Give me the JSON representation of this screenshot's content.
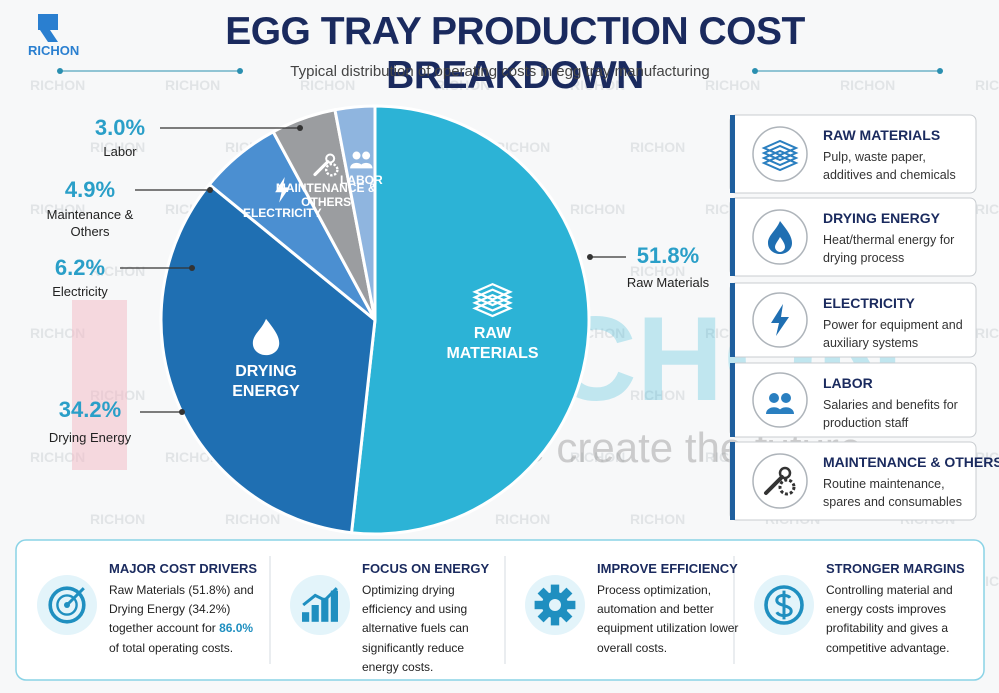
{
  "logo": {
    "text": "RICHON"
  },
  "header": {
    "title": "EGG TRAY PRODUCTION COST BREAKDOWN",
    "subtitle": "Typical distribution of operating costs in egg tray manufacturing"
  },
  "watermark": {
    "brand": "RICHON",
    "tagline": "Resource create the future"
  },
  "chart_data": {
    "type": "pie",
    "categories": [
      "RAW MATERIALS",
      "DRYING ENERGY",
      "ELECTRICITY",
      "MAINTENANCE & OTHERS",
      "LABOR"
    ],
    "outer_labels": [
      "Raw Materials",
      "Drying Energy",
      "Electricity",
      "Maintenance & Others",
      "Labor"
    ],
    "values": [
      51.8,
      34.2,
      6.2,
      4.9,
      3.0
    ],
    "value_labels": [
      "51.8%",
      "34.2%",
      "6.2%",
      "4.9%",
      "3.0%"
    ],
    "colors": [
      "#2cb3d6",
      "#1f6fb2",
      "#4b8fd1",
      "#9b9da0",
      "#8fb5df"
    ]
  },
  "legend_cards": [
    {
      "title": "RAW MATERIALS",
      "description": "Pulp, waste paper, additives and chemicals"
    },
    {
      "title": "DRYING ENERGY",
      "description": "Heat/thermal energy for drying process"
    },
    {
      "title": "ELECTRICITY",
      "description": "Power for equipment and auxiliary systems"
    },
    {
      "title": "LABOR",
      "description": "Salaries and benefits for production staff"
    },
    {
      "title": "MAINTENANCE & OTHERS",
      "description": "Routine maintenance, spares and consumables"
    }
  ],
  "summary": [
    {
      "title": "MAJOR COST DRIVERS",
      "text": [
        "Raw Materials (51.8%) and Drying Energy (34.2%) together account for ",
        "86.0%",
        " of total operating costs."
      ]
    },
    {
      "title": "FOCUS ON ENERGY",
      "text": [
        "Optimizing drying efficiency and using alternative fuels can significantly reduce energy costs."
      ]
    },
    {
      "title": "IMPROVE EFFICIENCY",
      "text": [
        "Process optimization, automation and better equipment utilization lower overall costs."
      ]
    },
    {
      "title": "STRONGER MARGINS",
      "text": [
        "Controlling material and energy costs improves profitability and gives a competitive advantage."
      ]
    }
  ]
}
